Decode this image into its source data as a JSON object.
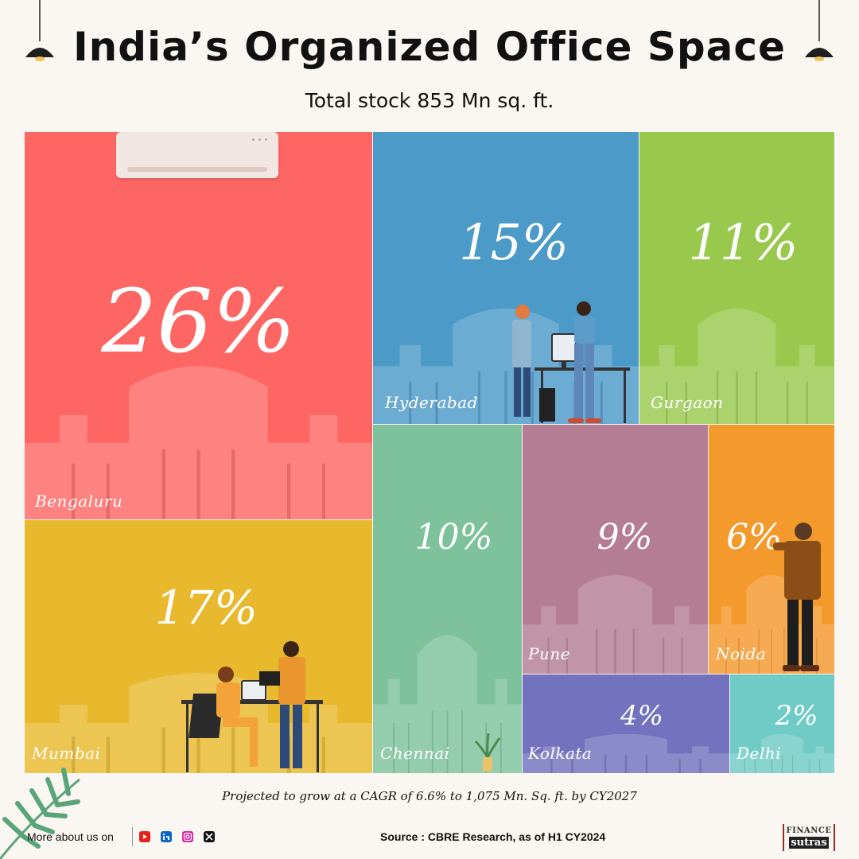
{
  "header": {
    "title": "India’s Organized Office Space",
    "subtitle": "Total stock 853 Mn sq. ft."
  },
  "chart_data": {
    "type": "treemap",
    "title": "India’s Organized Office Space",
    "subtitle": "Total stock 853 Mn sq. ft.",
    "unit": "%",
    "items": [
      {
        "city": "Bengaluru",
        "value": 26,
        "label": "26%",
        "color": "#fe6663"
      },
      {
        "city": "Mumbai",
        "value": 17,
        "label": "17%",
        "color": "#e8b92c"
      },
      {
        "city": "Hyderabad",
        "value": 15,
        "label": "15%",
        "color": "#4b9ac8"
      },
      {
        "city": "Gurgaon",
        "value": 11,
        "label": "11%",
        "color": "#98c94d"
      },
      {
        "city": "Chennai",
        "value": 10,
        "label": "10%",
        "color": "#7dc29b"
      },
      {
        "city": "Pune",
        "value": 9,
        "label": "9%",
        "color": "#b47d93"
      },
      {
        "city": "Noida",
        "value": 6,
        "label": "6%",
        "color": "#f4992c"
      },
      {
        "city": "Kolkata",
        "value": 4,
        "label": "4%",
        "color": "#7272bf"
      },
      {
        "city": "Delhi",
        "value": 2,
        "label": "2%",
        "color": "#70cbc6"
      }
    ]
  },
  "footer": {
    "note": "Projected to grow at a CAGR of 6.6% to 1,075 Mn. Sq. ft. by CY2027",
    "more_label": "More about us on",
    "source": "Source : CBRE Research, as of H1 CY2024",
    "social_icons": [
      "youtube-icon",
      "linkedin-icon",
      "instagram-icon",
      "x-icon"
    ],
    "brand_line1": "FINANCE",
    "brand_line2": "sutras"
  }
}
